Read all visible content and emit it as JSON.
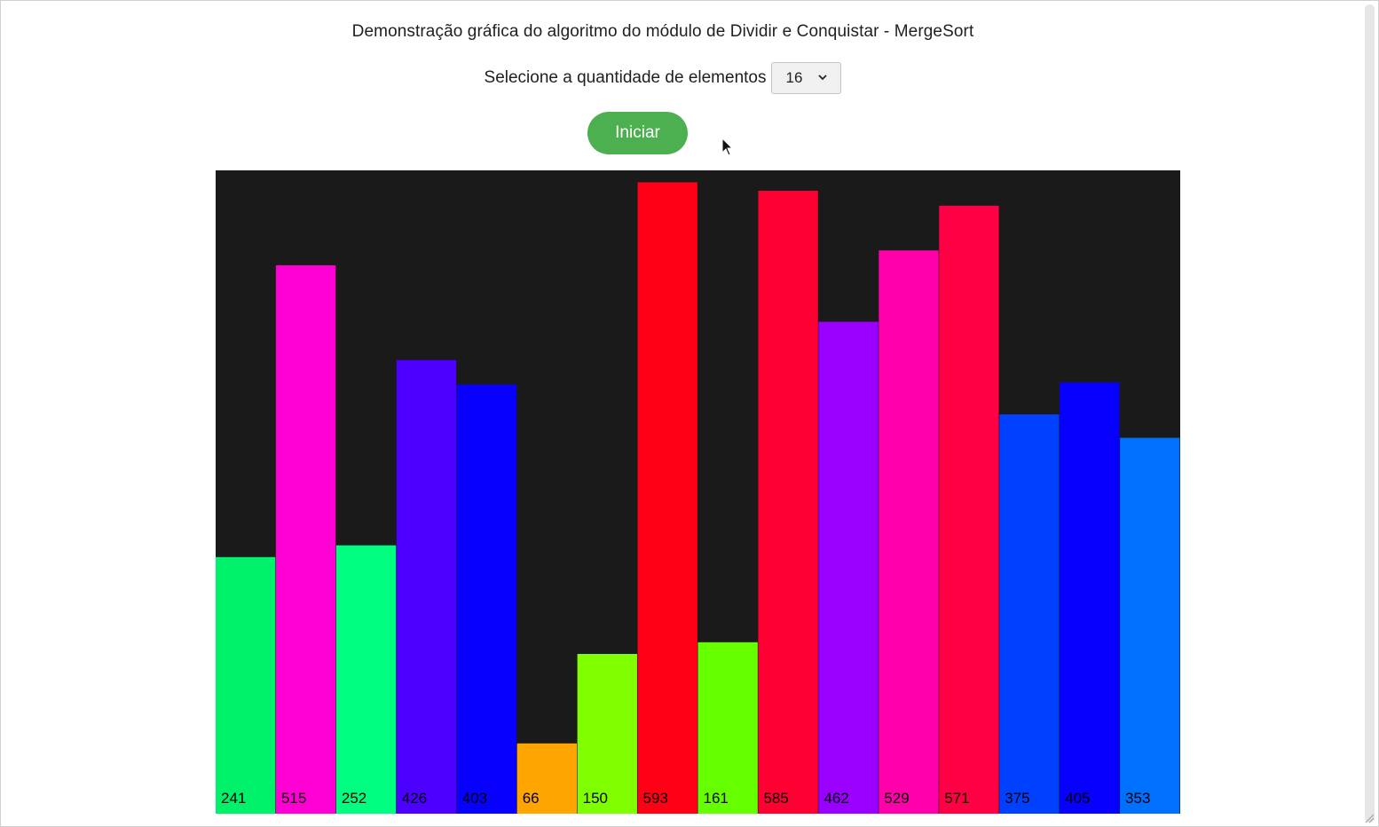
{
  "page": {
    "title": "Demonstração gráfica do algoritmo do módulo de Dividir e Conquistar - MergeSort"
  },
  "controls": {
    "select_label": "Selecione a quantidade de elementos",
    "select_value": "16",
    "start_label": "Iniciar",
    "start_color": "#4caf50"
  },
  "chart_data": {
    "type": "bar",
    "background": "#1a1a1a",
    "ylim": [
      0,
      600
    ],
    "values": [
      241,
      515,
      252,
      426,
      403,
      66,
      150,
      593,
      161,
      585,
      462,
      529,
      571,
      375,
      405,
      353
    ],
    "colors": [
      "#00f26a",
      "#ff00d4",
      "#00ff80",
      "#4c00ff",
      "#0800ff",
      "#ffa500",
      "#80ff00",
      "#ff0015",
      "#66ff00",
      "#ff0033",
      "#9900ff",
      "#ff00aa",
      "#ff0044",
      "#0040ff",
      "#0800ff",
      "#0070ff"
    ]
  }
}
